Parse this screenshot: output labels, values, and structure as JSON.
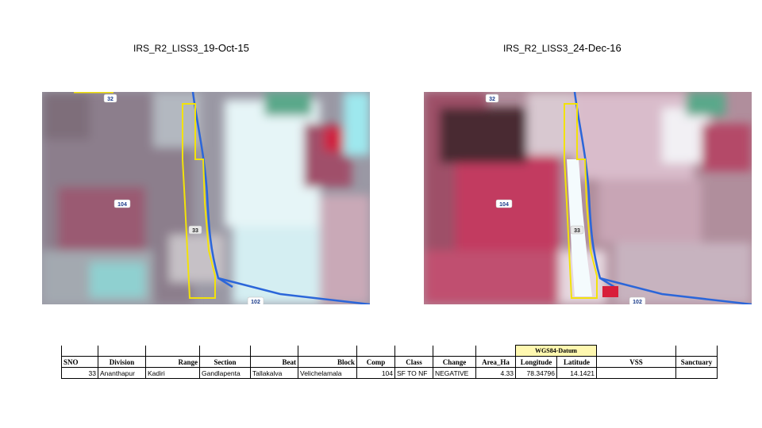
{
  "titles": {
    "left": {
      "prefix": "IRS_R2_LISS3_",
      "date": "19-Oct-15"
    },
    "right": {
      "prefix": "IRS_R2_LISS3_",
      "date": "24-Dec-16"
    }
  },
  "map_labels": {
    "road_32": "32",
    "road_104": "104",
    "road_102": "102",
    "compartment": "33"
  },
  "colors": {
    "boundary": "#f2e20a",
    "road": "#2b66d9",
    "vegetation": "#c23b60",
    "bare_soil": "#e8f6fa"
  },
  "table": {
    "datum": "WGS84-Datum",
    "headers": {
      "sno": "SNO",
      "division": "Division",
      "range": "Range",
      "section": "Section",
      "beat": "Beat",
      "block": "Block",
      "comp": "Comp",
      "class": "Class",
      "change": "Change",
      "area": "Area_Ha",
      "longitude": "Longitude",
      "latitude": "Latitude",
      "vss": "VSS",
      "sanctuary": "Sanctuary"
    },
    "row": {
      "sno": "33",
      "division": "Ananthapur",
      "range": "Kadiri",
      "section": "Gandlapenta",
      "beat": "Tallakalva",
      "block": "Velichelamala",
      "comp": "104",
      "class": "SF TO NF",
      "change": "NEGATIVE",
      "area": "4.33",
      "longitude": "78.34796",
      "latitude": "14.1421",
      "vss": "",
      "sanctuary": ""
    }
  }
}
